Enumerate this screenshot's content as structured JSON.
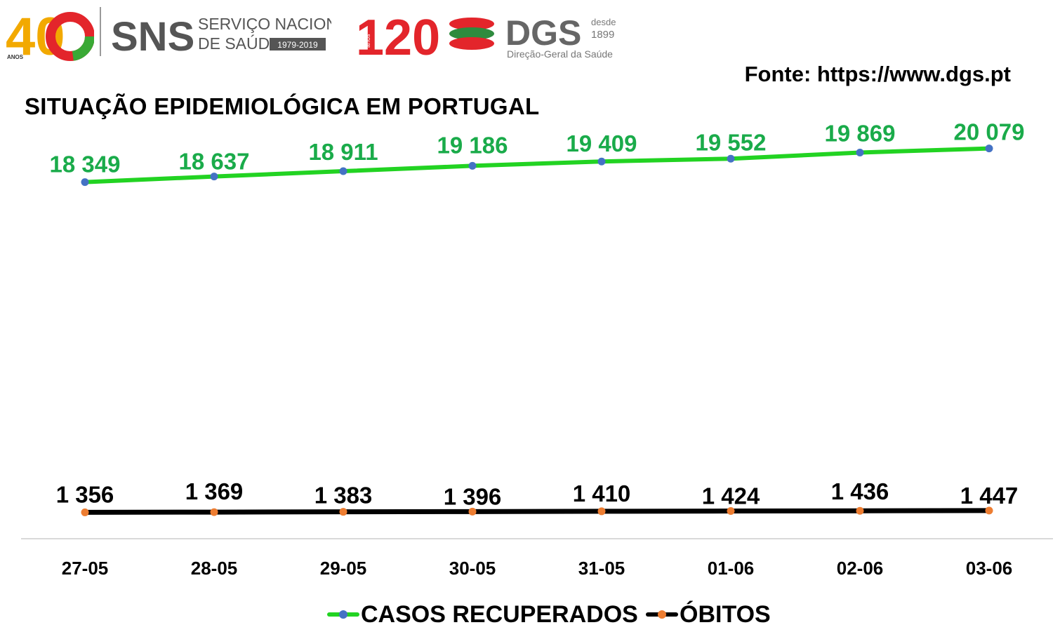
{
  "header": {
    "logo_40": {
      "number": "40",
      "sub": "ANOS"
    },
    "logo_sns": {
      "abbr": "SNS",
      "line1": "SERVIÇO NACIONAL",
      "line2": "DE SAÚDE",
      "years": "1979-2019"
    },
    "logo_120": {
      "number": "120",
      "sub": "anos"
    },
    "logo_dgs": {
      "abbr": "DGS",
      "desde": "desde",
      "year": "1899",
      "name": "Direção-Geral da Saúde"
    }
  },
  "source": "Fonte: https://www.dgs.pt",
  "title": "SITUAÇÃO EPIDEMIOLÓGICA EM PORTUGAL",
  "colors": {
    "recovered_line": "#22d322",
    "recovered_label": "#1aab4a",
    "recovered_marker": "#4472c4",
    "deaths_line": "#000000",
    "deaths_label": "#000000",
    "deaths_marker": "#ed7d31",
    "axis": "#d9d9d9"
  },
  "chart_data": {
    "type": "line",
    "categories": [
      "27-05",
      "28-05",
      "29-05",
      "30-05",
      "31-05",
      "01-06",
      "02-06",
      "03-06"
    ],
    "series": [
      {
        "name": "CASOS RECUPERADOS",
        "values": [
          18349,
          18637,
          18911,
          19186,
          19409,
          19552,
          19869,
          20079
        ],
        "labels": [
          "18 349",
          "18 637",
          "18 911",
          "19 186",
          "19 409",
          "19 552",
          "19 869",
          "20 079"
        ]
      },
      {
        "name": "ÓBITOS",
        "values": [
          1356,
          1369,
          1383,
          1396,
          1410,
          1424,
          1436,
          1447
        ],
        "labels": [
          "1 356",
          "1 369",
          "1 383",
          "1 396",
          "1 410",
          "1 424",
          "1 436",
          "1 447"
        ]
      }
    ],
    "title": "SITUAÇÃO EPIDEMIOLÓGICA EM PORTUGAL",
    "ylim": [
      0,
      20500
    ],
    "grid": false,
    "legend": "bottom"
  }
}
